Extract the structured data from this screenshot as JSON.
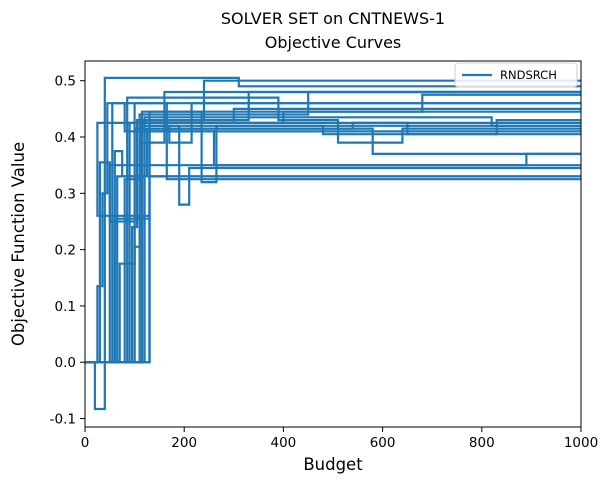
{
  "chart_data": {
    "type": "line",
    "title": "SOLVER SET on CNTNEWS-1",
    "subtitle": "Objective Curves",
    "xlabel": "Budget",
    "ylabel": "Objective Function Value",
    "xlim": [
      0,
      1000
    ],
    "ylim": [
      -0.115,
      0.535
    ],
    "xticks": [
      "0",
      "200",
      "400",
      "600",
      "800",
      "1000"
    ],
    "yticks": [
      "-0.1",
      "0.0",
      "0.1",
      "0.2",
      "0.3",
      "0.4",
      "0.5"
    ],
    "xtick_values": [
      0,
      200,
      400,
      600,
      800,
      1000
    ],
    "ytick_values": [
      -0.1,
      0.0,
      0.1,
      0.2,
      0.3,
      0.4,
      0.5
    ],
    "grid": false,
    "legend_position": "top-right",
    "color": "#1f77b4",
    "series": [
      {
        "name": "RNDSRCH",
        "points": [
          [
            0,
            0
          ],
          [
            20,
            0
          ],
          [
            20,
            -0.083
          ],
          [
            40,
            -0.083
          ],
          [
            40,
            0.505
          ],
          [
            310,
            0.505
          ],
          [
            310,
            0.49
          ],
          [
            1000,
            0.49
          ]
        ]
      },
      {
        "values_only": true,
        "points": [
          [
            0,
            0
          ],
          [
            130,
            0
          ],
          [
            130,
            0.26
          ],
          [
            25,
            0.26
          ],
          [
            25,
            0.425
          ],
          [
            300,
            0.425
          ],
          [
            300,
            0.45
          ],
          [
            1000,
            0.45
          ]
        ]
      },
      {
        "values_only": true,
        "points": [
          [
            0,
            0
          ],
          [
            25,
            0
          ],
          [
            25,
            0.135
          ],
          [
            35,
            0.135
          ],
          [
            35,
            0.3
          ],
          [
            45,
            0.3
          ],
          [
            45,
            0.46
          ],
          [
            1000,
            0.46
          ]
        ]
      },
      {
        "values_only": true,
        "points": [
          [
            0,
            0
          ],
          [
            30,
            0
          ],
          [
            30,
            0.355
          ],
          [
            50,
            0.355
          ],
          [
            50,
            0.25
          ],
          [
            100,
            0.25
          ],
          [
            100,
            0.33
          ],
          [
            1000,
            0.33
          ]
        ]
      },
      {
        "values_only": true,
        "points": [
          [
            0,
            0
          ],
          [
            55,
            0
          ],
          [
            55,
            0.46
          ],
          [
            80,
            0.46
          ],
          [
            80,
            0.41
          ],
          [
            1000,
            0.41
          ]
        ]
      },
      {
        "values_only": true,
        "points": [
          [
            0,
            0
          ],
          [
            60,
            0
          ],
          [
            60,
            0.375
          ],
          [
            75,
            0.375
          ],
          [
            75,
            0.33
          ],
          [
            1000,
            0.33
          ]
        ]
      },
      {
        "values_only": true,
        "points": [
          [
            0,
            0
          ],
          [
            70,
            0
          ],
          [
            70,
            0.175
          ],
          [
            100,
            0.175
          ],
          [
            100,
            0.46
          ],
          [
            165,
            0.46
          ],
          [
            165,
            0.325
          ],
          [
            1000,
            0.325
          ]
        ]
      },
      {
        "values_only": true,
        "points": [
          [
            0,
            0
          ],
          [
            80,
            0
          ],
          [
            80,
            0.325
          ],
          [
            110,
            0.325
          ],
          [
            110,
            0.44
          ],
          [
            450,
            0.44
          ],
          [
            450,
            0.48
          ],
          [
            1000,
            0.48
          ]
        ]
      },
      {
        "values_only": true,
        "points": [
          [
            0,
            0
          ],
          [
            100,
            0
          ],
          [
            100,
            0.205
          ],
          [
            110,
            0.205
          ],
          [
            110,
            0.39
          ],
          [
            160,
            0.39
          ],
          [
            160,
            0.48
          ],
          [
            1000,
            0.48
          ]
        ]
      },
      {
        "values_only": true,
        "points": [
          [
            0,
            0
          ],
          [
            95,
            0
          ],
          [
            95,
            0.24
          ],
          [
            105,
            0.24
          ],
          [
            105,
            0.43
          ],
          [
            240,
            0.43
          ],
          [
            240,
            0.5
          ],
          [
            1000,
            0.5
          ]
        ]
      },
      {
        "values_only": true,
        "points": [
          [
            0,
            0
          ],
          [
            110,
            0
          ],
          [
            110,
            0.42
          ],
          [
            190,
            0.42
          ],
          [
            190,
            0.28
          ],
          [
            210,
            0.28
          ],
          [
            210,
            0.345
          ],
          [
            1000,
            0.345
          ]
        ]
      },
      {
        "values_only": true,
        "points": [
          [
            0,
            0
          ],
          [
            115,
            0
          ],
          [
            115,
            0.445
          ],
          [
            235,
            0.445
          ],
          [
            235,
            0.32
          ],
          [
            265,
            0.32
          ],
          [
            265,
            0.42
          ],
          [
            1000,
            0.42
          ]
        ]
      },
      {
        "values_only": true,
        "points": [
          [
            0,
            0
          ],
          [
            120,
            0
          ],
          [
            120,
            0.42
          ],
          [
            170,
            0.42
          ],
          [
            170,
            0.39
          ],
          [
            215,
            0.39
          ],
          [
            215,
            0.46
          ],
          [
            1000,
            0.46
          ]
        ]
      },
      {
        "values_only": true,
        "points": [
          [
            0,
            0
          ],
          [
            90,
            0
          ],
          [
            90,
            0.425
          ],
          [
            400,
            0.425
          ],
          [
            400,
            0.445
          ],
          [
            1000,
            0.445
          ]
        ]
      },
      {
        "values_only": true,
        "points": [
          [
            0,
            0
          ],
          [
            130,
            0
          ],
          [
            130,
            0.41
          ],
          [
            260,
            0.41
          ],
          [
            260,
            0.35
          ],
          [
            1000,
            0.35
          ]
        ]
      },
      {
        "values_only": true,
        "points": [
          [
            0,
            0
          ],
          [
            85,
            0
          ],
          [
            85,
            0.47
          ],
          [
            390,
            0.47
          ],
          [
            390,
            0.43
          ],
          [
            510,
            0.43
          ],
          [
            510,
            0.39
          ],
          [
            640,
            0.39
          ],
          [
            640,
            0.415
          ],
          [
            1000,
            0.415
          ]
        ]
      },
      {
        "values_only": true,
        "points": [
          [
            0,
            0
          ],
          [
            100,
            0
          ],
          [
            100,
            0.415
          ],
          [
            580,
            0.415
          ],
          [
            580,
            0.37
          ],
          [
            1000,
            0.37
          ]
        ]
      },
      {
        "values_only": true,
        "points": [
          [
            0,
            0
          ],
          [
            50,
            0
          ],
          [
            50,
            0.35
          ],
          [
            890,
            0.35
          ],
          [
            890,
            0.37
          ],
          [
            1000,
            0.37
          ]
        ]
      },
      {
        "values_only": true,
        "points": [
          [
            0,
            0
          ],
          [
            110,
            0
          ],
          [
            110,
            0.425
          ],
          [
            650,
            0.425
          ],
          [
            650,
            0.405
          ],
          [
            1000,
            0.405
          ]
        ]
      },
      {
        "values_only": true,
        "points": [
          [
            0,
            0
          ],
          [
            120,
            0
          ],
          [
            120,
            0.435
          ],
          [
            820,
            0.435
          ],
          [
            820,
            0.42
          ],
          [
            1000,
            0.42
          ]
        ]
      },
      {
        "values_only": true,
        "points": [
          [
            0,
            0
          ],
          [
            60,
            0
          ],
          [
            60,
            0.255
          ],
          [
            130,
            0.255
          ],
          [
            130,
            0.445
          ],
          [
            680,
            0.445
          ],
          [
            680,
            0.475
          ],
          [
            1000,
            0.475
          ]
        ]
      },
      {
        "values_only": true,
        "points": [
          [
            0,
            0
          ],
          [
            130,
            0
          ],
          [
            130,
            0.42
          ],
          [
            480,
            0.42
          ],
          [
            480,
            0.405
          ],
          [
            830,
            0.405
          ],
          [
            830,
            0.43
          ],
          [
            1000,
            0.43
          ]
        ]
      },
      {
        "values_only": true,
        "points": [
          [
            0,
            0
          ],
          [
            65,
            0
          ],
          [
            65,
            0.33
          ],
          [
            125,
            0.33
          ],
          [
            125,
            0.415
          ],
          [
            540,
            0.415
          ],
          [
            540,
            0.425
          ],
          [
            1000,
            0.425
          ]
        ]
      },
      {
        "values_only": true,
        "points": [
          [
            0,
            0
          ],
          [
            115,
            0
          ],
          [
            115,
            0.43
          ],
          [
            330,
            0.43
          ],
          [
            330,
            0.48
          ],
          [
            1000,
            0.48
          ]
        ]
      }
    ]
  }
}
